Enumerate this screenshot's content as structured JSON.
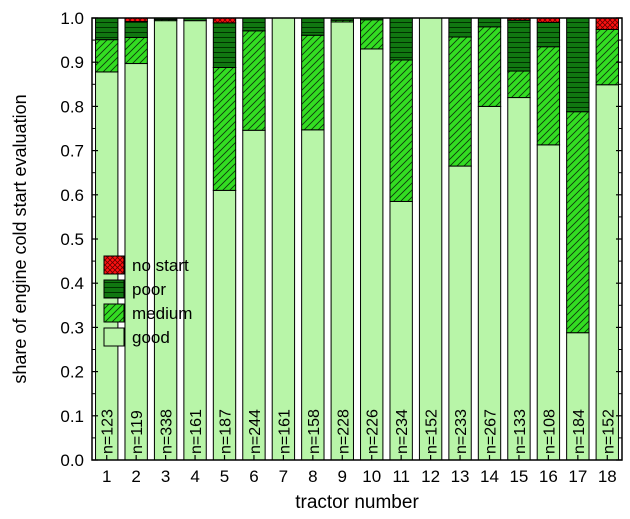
{
  "chart_data": {
    "type": "bar",
    "stacked": true,
    "xlabel": "tractor number",
    "ylabel": "share of engine cold start evaluation",
    "ylim": [
      0,
      1.0
    ],
    "yticks": [
      "0.0",
      "0.1",
      "0.2",
      "0.3",
      "0.4",
      "0.5",
      "0.6",
      "0.7",
      "0.8",
      "0.9",
      "1.0"
    ],
    "categories": [
      "1",
      "2",
      "3",
      "4",
      "5",
      "6",
      "7",
      "8",
      "9",
      "10",
      "11",
      "12",
      "13",
      "14",
      "15",
      "16",
      "17",
      "18"
    ],
    "n_labels": [
      "n=123",
      "n=119",
      "n=338",
      "n=161",
      "n=187",
      "n=244",
      "n=161",
      "n=158",
      "n=228",
      "n=226",
      "n=234",
      "n=152",
      "n=233",
      "n=267",
      "n=133",
      "n=108",
      "n=184",
      "n=152"
    ],
    "series": [
      {
        "name": "good",
        "color": "#b8f5a8",
        "pattern": "none",
        "values": [
          0.878,
          0.897,
          0.994,
          0.994,
          0.61,
          0.746,
          1.0,
          0.747,
          0.991,
          0.93,
          0.585,
          1.0,
          0.665,
          0.8,
          0.82,
          0.713,
          0.288,
          0.849
        ]
      },
      {
        "name": "medium",
        "color": "#33dd22",
        "pattern": "diagonal-hatch",
        "values": [
          0.073,
          0.059,
          0.003,
          0.0,
          0.278,
          0.225,
          0.0,
          0.214,
          0.004,
          0.066,
          0.32,
          0.0,
          0.292,
          0.18,
          0.06,
          0.222,
          0.5,
          0.125
        ]
      },
      {
        "name": "poor",
        "color": "#117711",
        "pattern": "horizontal-lines",
        "values": [
          0.049,
          0.036,
          0.003,
          0.006,
          0.101,
          0.029,
          0.0,
          0.039,
          0.005,
          0.004,
          0.095,
          0.0,
          0.043,
          0.02,
          0.115,
          0.055,
          0.212,
          0.0
        ]
      },
      {
        "name": "no start",
        "color": "#ff1111",
        "pattern": "cross-hatch",
        "values": [
          0.0,
          0.008,
          0.0,
          0.0,
          0.011,
          0.0,
          0.0,
          0.0,
          0.0,
          0.0,
          0.0,
          0.0,
          0.0,
          0.0,
          0.005,
          0.01,
          0.0,
          0.026
        ]
      }
    ],
    "legend": {
      "position": "middle-left",
      "order": [
        "no start",
        "poor",
        "medium",
        "good"
      ]
    },
    "grid": false
  }
}
